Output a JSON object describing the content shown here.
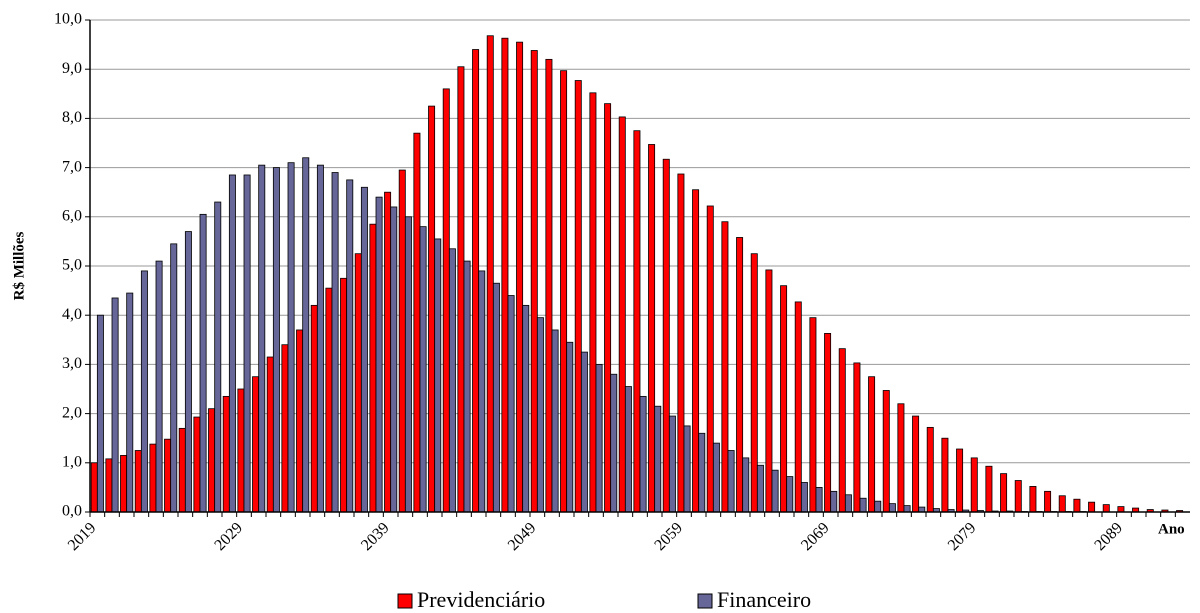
{
  "chart_data": {
    "type": "bar",
    "y_label": "R$ Millões",
    "x_label": "Ano",
    "categories": [
      "2019",
      null,
      null,
      null,
      null,
      null,
      null,
      null,
      null,
      null,
      "2029",
      null,
      null,
      null,
      null,
      null,
      null,
      null,
      null,
      null,
      "2039",
      null,
      null,
      null,
      null,
      null,
      null,
      null,
      null,
      null,
      "2049",
      null,
      null,
      null,
      null,
      null,
      null,
      null,
      null,
      null,
      "2059",
      null,
      null,
      null,
      null,
      null,
      null,
      null,
      null,
      null,
      "2069",
      null,
      null,
      null,
      null,
      null,
      null,
      null,
      null,
      null,
      "2079",
      null,
      null,
      null,
      null,
      null,
      null,
      null,
      null,
      null,
      "2089",
      null,
      null,
      null,
      null
    ],
    "series": [
      {
        "name": "Previdenciário",
        "color": "#ff0000",
        "values": [
          1.0,
          1.08,
          1.15,
          1.25,
          1.38,
          1.48,
          1.7,
          1.93,
          2.1,
          2.35,
          2.5,
          2.75,
          3.15,
          3.4,
          3.7,
          4.2,
          4.55,
          4.75,
          5.25,
          5.85,
          6.5,
          6.95,
          7.7,
          8.25,
          8.6,
          9.05,
          9.4,
          9.68,
          9.63,
          9.55,
          9.38,
          9.2,
          8.97,
          8.77,
          8.52,
          8.3,
          8.03,
          7.75,
          7.47,
          7.17,
          6.87,
          6.55,
          6.22,
          5.9,
          5.58,
          5.25,
          4.92,
          4.6,
          4.27,
          3.95,
          3.63,
          3.32,
          3.03,
          2.75,
          2.47,
          2.2,
          1.95,
          1.72,
          1.5,
          1.28,
          1.1,
          0.93,
          0.78,
          0.64,
          0.52,
          0.42,
          0.33,
          0.26,
          0.2,
          0.15,
          0.11,
          0.08,
          0.05,
          0.04,
          0.03
        ]
      },
      {
        "name": "Financeiro",
        "color": "#666699",
        "values": [
          4.0,
          4.35,
          4.45,
          4.9,
          5.1,
          5.45,
          5.7,
          6.05,
          6.3,
          6.85,
          6.85,
          7.05,
          7.0,
          7.1,
          7.2,
          7.05,
          6.9,
          6.75,
          6.6,
          6.4,
          6.2,
          6.0,
          5.8,
          5.55,
          5.35,
          5.1,
          4.9,
          4.65,
          4.4,
          4.2,
          3.95,
          3.7,
          3.45,
          3.25,
          3.0,
          2.8,
          2.55,
          2.35,
          2.15,
          1.95,
          1.75,
          1.6,
          1.4,
          1.25,
          1.1,
          0.95,
          0.85,
          0.72,
          0.6,
          0.5,
          0.42,
          0.35,
          0.28,
          0.22,
          0.17,
          0.13,
          0.1,
          0.07,
          0.05,
          0.04,
          0.03,
          0.02,
          0.02,
          0.01,
          0.01,
          0.01,
          0.01,
          0.01,
          0,
          0,
          0,
          0,
          0,
          0,
          0
        ]
      }
    ],
    "ylim": [
      0,
      10
    ],
    "yticks": [
      {
        "value": 0,
        "label": "0,0"
      },
      {
        "value": 1,
        "label": "1,0"
      },
      {
        "value": 2,
        "label": "2,0"
      },
      {
        "value": 3,
        "label": "3,0"
      },
      {
        "value": 4,
        "label": "4,0"
      },
      {
        "value": 5,
        "label": "5,0"
      },
      {
        "value": 6,
        "label": "6,0"
      },
      {
        "value": 7,
        "label": "7,0"
      },
      {
        "value": 8,
        "label": "8,0"
      },
      {
        "value": 9,
        "label": "9,0"
      },
      {
        "value": 10,
        "label": "10,0"
      }
    ],
    "grid": true,
    "legend": "bottom"
  }
}
